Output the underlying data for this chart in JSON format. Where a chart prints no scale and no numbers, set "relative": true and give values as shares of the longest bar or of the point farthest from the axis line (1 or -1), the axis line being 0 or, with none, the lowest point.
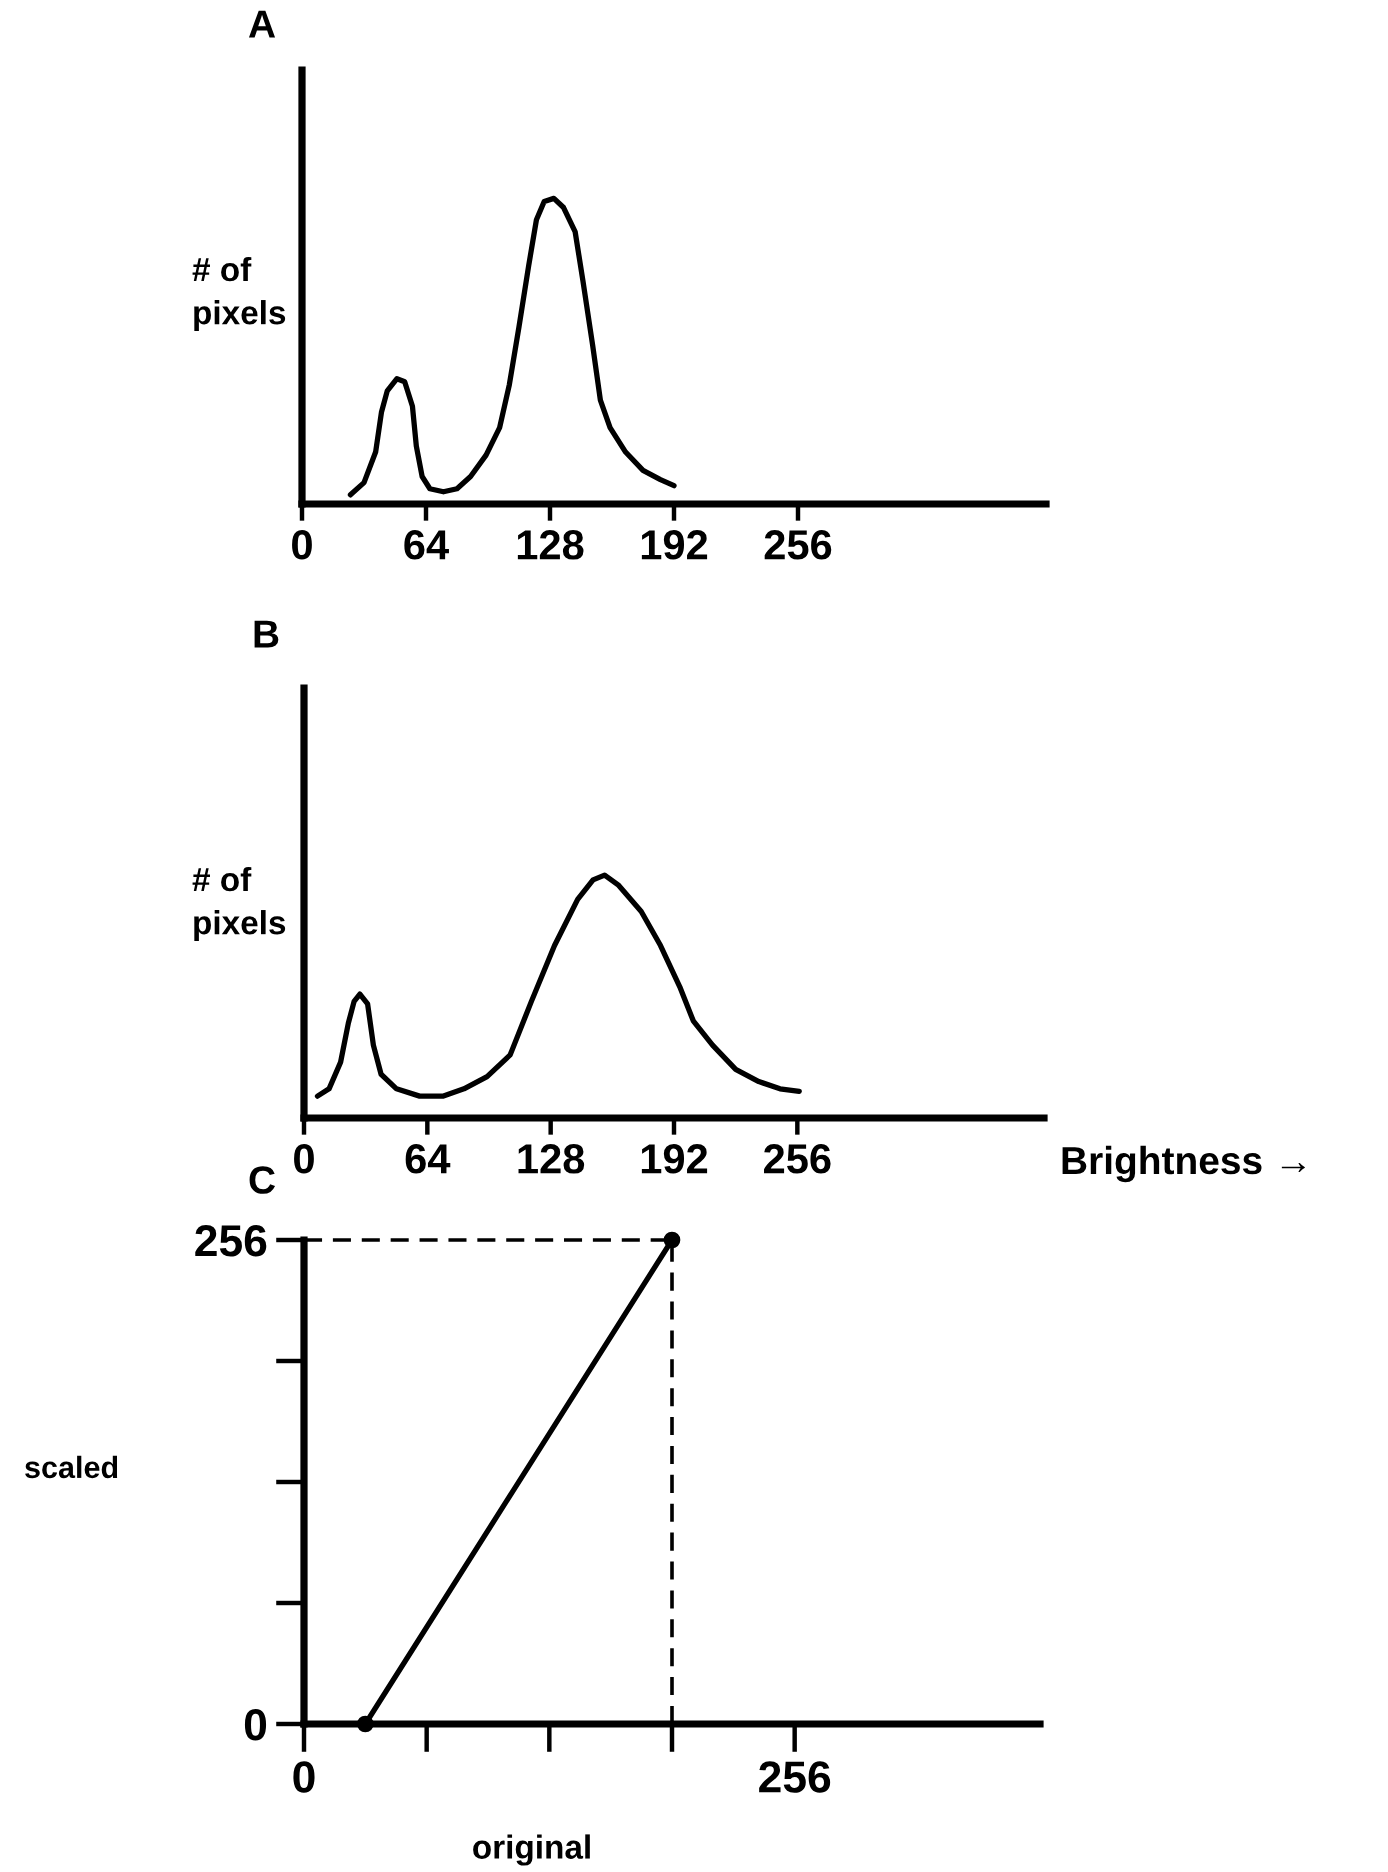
{
  "chart_data": [
    {
      "type": "line",
      "title": "A",
      "ylabel": "# of\npixels",
      "relative": true,
      "tick_labels": "x",
      "color": "#000000",
      "xlim": [
        0,
        384
      ],
      "xticks": [
        0,
        64,
        128,
        192,
        256
      ],
      "x": [
        25,
        32,
        38,
        41,
        44,
        49,
        53,
        57,
        59,
        62,
        66,
        73,
        80,
        87,
        95,
        102,
        107,
        112,
        117,
        121,
        125,
        130,
        135,
        141,
        145,
        150,
        154,
        159,
        167,
        176,
        185,
        192
      ],
      "values": [
        0.03,
        0.07,
        0.17,
        0.3,
        0.37,
        0.41,
        0.4,
        0.32,
        0.19,
        0.09,
        0.05,
        0.04,
        0.05,
        0.09,
        0.16,
        0.25,
        0.39,
        0.58,
        0.78,
        0.93,
        0.99,
        1,
        0.97,
        0.89,
        0.73,
        0.52,
        0.34,
        0.25,
        0.17,
        0.11,
        0.08,
        0.06
      ]
    },
    {
      "type": "line",
      "title": "B",
      "ylabel": "# of\npixels",
      "xlabel": "Brightness →",
      "relative": true,
      "tick_labels": "x",
      "color": "#000000",
      "xlim": [
        0,
        384
      ],
      "xticks": [
        0,
        64,
        128,
        192,
        256
      ],
      "x": [
        7,
        13,
        19,
        23,
        26,
        29,
        33,
        36,
        40,
        48,
        60,
        72,
        83,
        95,
        107,
        118,
        130,
        142,
        150,
        156,
        163,
        175,
        185,
        195,
        202,
        212,
        224,
        236,
        247,
        257
      ],
      "values": [
        0.09,
        0.12,
        0.23,
        0.39,
        0.48,
        0.51,
        0.47,
        0.3,
        0.18,
        0.12,
        0.09,
        0.09,
        0.12,
        0.17,
        0.26,
        0.48,
        0.71,
        0.9,
        0.98,
        1,
        0.96,
        0.85,
        0.71,
        0.54,
        0.4,
        0.3,
        0.2,
        0.15,
        0.12,
        0.11
      ]
    },
    {
      "type": "line",
      "title": "C",
      "xlabel": "original",
      "ylabel": "scaled",
      "xlim": [
        0,
        384
      ],
      "xticks": [
        0,
        {
          "value": 64,
          "label": null
        },
        {
          "value": 128,
          "label": null
        },
        {
          "value": 192,
          "label": null
        },
        256
      ],
      "ylim": [
        0,
        256
      ],
      "yticks": [
        0,
        {
          "value": 64,
          "label": null
        },
        {
          "value": 128,
          "label": null
        },
        {
          "value": 192,
          "label": null
        },
        256
      ],
      "series": [
        {
          "color": "#000000",
          "x": [
            32,
            192
          ],
          "values": [
            0,
            256
          ],
          "marker": "circle"
        },
        {
          "color": "#000000",
          "x": [
            0,
            192
          ],
          "values": [
            256,
            256
          ],
          "line_style": "dashed"
        },
        {
          "color": "#000000",
          "x": [
            192,
            192
          ],
          "values": [
            0,
            256
          ],
          "line_style": "dashed"
        }
      ]
    }
  ]
}
